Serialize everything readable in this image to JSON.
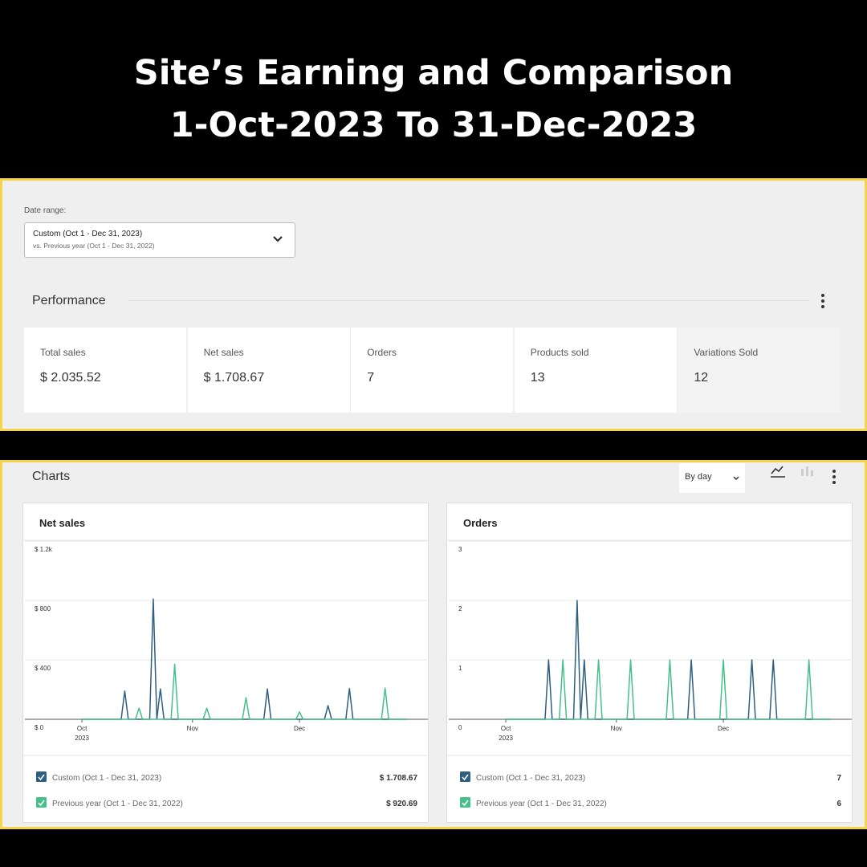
{
  "header": {
    "title_lines": [
      "Site’s Earning and Comparison",
      "1-Oct-2023 To 31-Dec-2023"
    ]
  },
  "date_range": {
    "label": "Date range:",
    "selected": "Custom (Oct 1 - Dec 31, 2023)",
    "comparison": "vs. Previous year (Oct 1 - Dec 31, 2022)"
  },
  "performance": {
    "title": "Performance",
    "stats": [
      {
        "label": "Total sales",
        "value": "$ 2.035.52"
      },
      {
        "label": "Net sales",
        "value": "$ 1.708.67"
      },
      {
        "label": "Orders",
        "value": 7
      },
      {
        "label": "Products sold",
        "value": 13
      },
      {
        "label": "Variations Sold",
        "value": 12
      }
    ]
  },
  "charts_section": {
    "title": "Charts",
    "interval": "By day"
  },
  "chart_data": [
    {
      "type": "line",
      "title": "Net sales",
      "xlim": [
        -16,
        97
      ],
      "xticks": [
        {
          "value": 0,
          "label": "Oct",
          "sublabel": "2023"
        },
        {
          "value": 31,
          "label": "Nov"
        },
        {
          "value": 61,
          "label": "Dec"
        }
      ],
      "ylim": [
        0,
        1200
      ],
      "yticks": [
        {
          "value": 0,
          "label": "$ 0"
        },
        {
          "value": 400,
          "label": "$ 400"
        },
        {
          "value": 800,
          "label": "$ 800"
        },
        {
          "value": 1200,
          "label": "$ 1.2k"
        }
      ],
      "grid": true,
      "series": [
        {
          "name": "Custom (Oct 1 - Dec 31, 2023)",
          "color": "#2f5f80",
          "total": "$ 1.708.67",
          "x": [
            0,
            11,
            12,
            13,
            19,
            20,
            21,
            22,
            23,
            51,
            52,
            53,
            68,
            69,
            70,
            74,
            75,
            76,
            91
          ],
          "values": [
            0,
            0,
            190,
            0,
            0,
            810,
            0,
            205,
            0,
            0,
            205,
            0,
            0,
            92,
            0,
            0,
            207,
            0,
            0
          ]
        },
        {
          "name": "Previous year (Oct 1 - Dec 31, 2022)",
          "color": "#45c089",
          "total": "$ 920.69",
          "x": [
            0,
            15,
            16,
            17,
            25,
            26,
            27,
            34,
            35,
            36,
            45,
            46,
            47,
            60,
            61,
            62,
            84,
            85,
            86,
            91
          ],
          "values": [
            0,
            0,
            75,
            0,
            0,
            370,
            0,
            0,
            75,
            0,
            0,
            145,
            0,
            0,
            50,
            0,
            0,
            210,
            0,
            0
          ]
        }
      ]
    },
    {
      "type": "line",
      "title": "Orders",
      "xlim": [
        -16,
        97
      ],
      "xticks": [
        {
          "value": 0,
          "label": "Oct",
          "sublabel": "2023"
        },
        {
          "value": 31,
          "label": "Nov"
        },
        {
          "value": 61,
          "label": "Dec"
        }
      ],
      "ylim": [
        0,
        3
      ],
      "yticks": [
        0,
        1,
        2,
        3
      ],
      "grid": true,
      "series": [
        {
          "name": "Custom (Oct 1 - Dec 31, 2023)",
          "color": "#2f5f80",
          "total": 7,
          "x": [
            0,
            11,
            12,
            13,
            19,
            20,
            21,
            22,
            23,
            51,
            52,
            53,
            68,
            69,
            70,
            74,
            75,
            76,
            91
          ],
          "values": [
            0,
            0,
            1,
            0,
            0,
            2,
            0,
            1,
            0,
            0,
            1,
            0,
            0,
            1,
            0,
            0,
            1,
            0,
            0
          ]
        },
        {
          "name": "Previous year (Oct 1 - Dec 31, 2022)",
          "color": "#45c089",
          "total": 6,
          "x": [
            0,
            15,
            16,
            17,
            25,
            26,
            27,
            34,
            35,
            36,
            45,
            46,
            47,
            60,
            61,
            62,
            84,
            85,
            86,
            91
          ],
          "values": [
            0,
            0,
            1,
            0,
            0,
            1,
            0,
            0,
            1,
            0,
            0,
            1,
            0,
            0,
            1,
            0,
            0,
            1,
            0,
            0
          ]
        }
      ]
    }
  ]
}
